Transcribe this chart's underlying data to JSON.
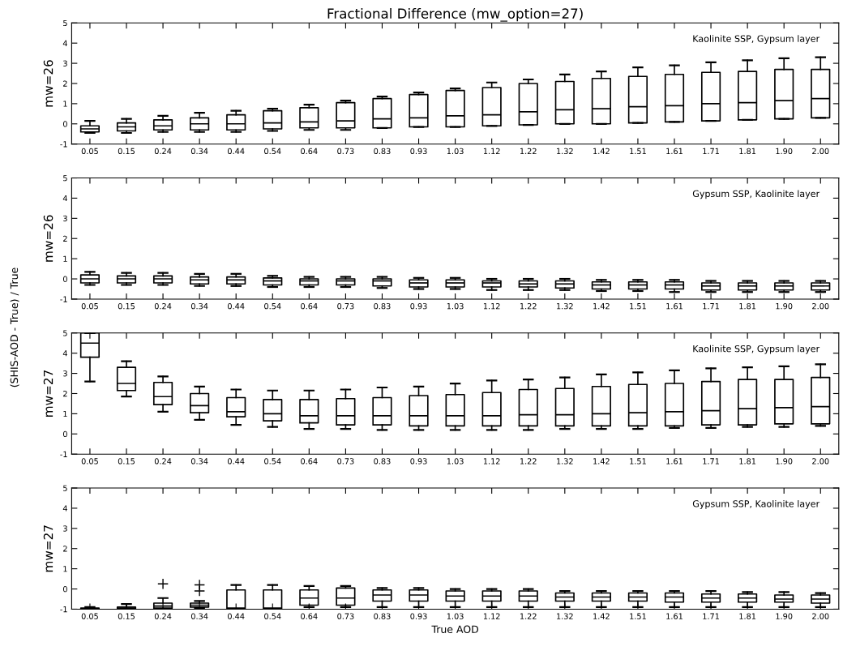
{
  "chart_data": [
    {
      "type": "box",
      "title": "Fractional Difference (mw_option=27)",
      "ylabel": "mw=26",
      "annotations": [
        "Kaolinite SSP, Gypsum layer",
        "(SHIS-AOD - True) / True"
      ],
      "categories": [
        "0.05",
        "0.15",
        "0.24",
        "0.34",
        "0.44",
        "0.54",
        "0.64",
        "0.73",
        "0.83",
        "0.93",
        "1.03",
        "1.12",
        "1.22",
        "1.32",
        "1.42",
        "1.51",
        "1.61",
        "1.71",
        "1.81",
        "1.90",
        "2.00"
      ],
      "ylim": [
        -1,
        5
      ],
      "yticks": [
        -1,
        0,
        1,
        2,
        3,
        4,
        5
      ],
      "color": "#000000",
      "boxes": [
        {
          "low": -0.45,
          "q1": -0.4,
          "median": -0.25,
          "q3": -0.1,
          "high": 0.15
        },
        {
          "low": -0.45,
          "q1": -0.35,
          "median": -0.15,
          "q3": 0.05,
          "high": 0.25
        },
        {
          "low": -0.4,
          "q1": -0.3,
          "median": -0.1,
          "q3": 0.2,
          "high": 0.4
        },
        {
          "low": -0.4,
          "q1": -0.3,
          "median": 0.0,
          "q3": 0.3,
          "high": 0.55
        },
        {
          "low": -0.4,
          "q1": -0.3,
          "median": 0.0,
          "q3": 0.45,
          "high": 0.65
        },
        {
          "low": -0.35,
          "q1": -0.25,
          "median": 0.05,
          "q3": 0.65,
          "high": 0.75
        },
        {
          "low": -0.3,
          "q1": -0.2,
          "median": 0.1,
          "q3": 0.8,
          "high": 0.95
        },
        {
          "low": -0.3,
          "q1": -0.2,
          "median": 0.15,
          "q3": 1.05,
          "high": 1.15
        },
        {
          "low": -0.2,
          "q1": -0.2,
          "median": 0.25,
          "q3": 1.25,
          "high": 1.35
        },
        {
          "low": -0.15,
          "q1": -0.15,
          "median": 0.3,
          "q3": 1.45,
          "high": 1.55
        },
        {
          "low": -0.15,
          "q1": -0.15,
          "median": 0.4,
          "q3": 1.65,
          "high": 1.75
        },
        {
          "low": -0.1,
          "q1": -0.1,
          "median": 0.45,
          "q3": 1.8,
          "high": 2.05
        },
        {
          "low": -0.05,
          "q1": -0.05,
          "median": 0.6,
          "q3": 2.0,
          "high": 2.2
        },
        {
          "low": 0.0,
          "q1": 0.0,
          "median": 0.7,
          "q3": 2.1,
          "high": 2.45
        },
        {
          "low": 0.0,
          "q1": 0.0,
          "median": 0.75,
          "q3": 2.25,
          "high": 2.6
        },
        {
          "low": 0.05,
          "q1": 0.05,
          "median": 0.85,
          "q3": 2.35,
          "high": 2.8
        },
        {
          "low": 0.1,
          "q1": 0.1,
          "median": 0.9,
          "q3": 2.45,
          "high": 2.9
        },
        {
          "low": 0.15,
          "q1": 0.15,
          "median": 1.0,
          "q3": 2.55,
          "high": 3.05
        },
        {
          "low": 0.2,
          "q1": 0.2,
          "median": 1.05,
          "q3": 2.6,
          "high": 3.15
        },
        {
          "low": 0.25,
          "q1": 0.25,
          "median": 1.15,
          "q3": 2.7,
          "high": 3.25
        },
        {
          "low": 0.3,
          "q1": 0.3,
          "median": 1.25,
          "q3": 2.7,
          "high": 3.3
        }
      ]
    },
    {
      "type": "box",
      "ylabel": "mw=26",
      "annotations": [
        "Gypsum SSP, Kaolinite layer"
      ],
      "categories": [
        "0.05",
        "0.15",
        "0.24",
        "0.34",
        "0.44",
        "0.54",
        "0.64",
        "0.73",
        "0.83",
        "0.93",
        "1.03",
        "1.12",
        "1.22",
        "1.32",
        "1.42",
        "1.51",
        "1.61",
        "1.71",
        "1.81",
        "1.90",
        "2.00"
      ],
      "ylim": [
        -1,
        5
      ],
      "yticks": [
        -1,
        0,
        1,
        2,
        3,
        4,
        5
      ],
      "color": "#000000",
      "boxes": [
        {
          "low": -0.3,
          "q1": -0.2,
          "median": 0.0,
          "q3": 0.2,
          "high": 0.35
        },
        {
          "low": -0.3,
          "q1": -0.2,
          "median": 0.0,
          "q3": 0.15,
          "high": 0.3
        },
        {
          "low": -0.3,
          "q1": -0.2,
          "median": 0.0,
          "q3": 0.15,
          "high": 0.3
        },
        {
          "low": -0.35,
          "q1": -0.25,
          "median": -0.05,
          "q3": 0.1,
          "high": 0.25
        },
        {
          "low": -0.35,
          "q1": -0.25,
          "median": -0.05,
          "q3": 0.1,
          "high": 0.25
        },
        {
          "low": -0.4,
          "q1": -0.3,
          "median": -0.1,
          "q3": 0.05,
          "high": 0.15
        },
        {
          "low": -0.4,
          "q1": -0.3,
          "median": -0.1,
          "q3": 0.0,
          "high": 0.1
        },
        {
          "low": -0.4,
          "q1": -0.3,
          "median": -0.1,
          "q3": 0.0,
          "high": 0.1
        },
        {
          "low": -0.45,
          "q1": -0.35,
          "median": -0.1,
          "q3": 0.0,
          "high": 0.1
        },
        {
          "low": -0.5,
          "q1": -0.4,
          "median": -0.2,
          "q3": -0.05,
          "high": 0.05
        },
        {
          "low": -0.5,
          "q1": -0.4,
          "median": -0.2,
          "q3": -0.05,
          "high": 0.05
        },
        {
          "low": -0.55,
          "q1": -0.4,
          "median": -0.2,
          "q3": -0.1,
          "high": 0.0
        },
        {
          "low": -0.55,
          "q1": -0.4,
          "median": -0.25,
          "q3": -0.1,
          "high": 0.0
        },
        {
          "low": -0.55,
          "q1": -0.45,
          "median": -0.25,
          "q3": -0.1,
          "high": 0.0
        },
        {
          "low": -0.6,
          "q1": -0.5,
          "median": -0.3,
          "q3": -0.15,
          "high": -0.05
        },
        {
          "low": -0.6,
          "q1": -0.5,
          "median": -0.3,
          "q3": -0.15,
          "high": -0.05
        },
        {
          "low": -0.65,
          "q1": -0.5,
          "median": -0.3,
          "q3": -0.15,
          "high": -0.05
        },
        {
          "low": -0.65,
          "q1": -0.55,
          "median": -0.35,
          "q3": -0.2,
          "high": -0.1
        },
        {
          "low": -0.65,
          "q1": -0.55,
          "median": -0.35,
          "q3": -0.2,
          "high": -0.1
        },
        {
          "low": -0.65,
          "q1": -0.55,
          "median": -0.35,
          "q3": -0.2,
          "high": -0.1
        },
        {
          "low": -0.65,
          "q1": -0.55,
          "median": -0.35,
          "q3": -0.2,
          "high": -0.1
        }
      ]
    },
    {
      "type": "box",
      "ylabel": "mw=27",
      "annotations": [
        "Kaolinite SSP, Gypsum layer"
      ],
      "categories": [
        "0.05",
        "0.15",
        "0.24",
        "0.34",
        "0.44",
        "0.54",
        "0.64",
        "0.73",
        "0.83",
        "0.93",
        "1.03",
        "1.12",
        "1.22",
        "1.32",
        "1.42",
        "1.51",
        "1.61",
        "1.71",
        "1.81",
        "1.90",
        "2.00"
      ],
      "ylim": [
        -1,
        5
      ],
      "yticks": [
        -1,
        0,
        1,
        2,
        3,
        4,
        5
      ],
      "color": "#000000",
      "boxes": [
        {
          "low": 2.6,
          "q1": 3.8,
          "median": 4.5,
          "q3": 5.0,
          "high": 5.0
        },
        {
          "low": 1.85,
          "q1": 2.15,
          "median": 2.5,
          "q3": 3.3,
          "high": 3.6
        },
        {
          "low": 1.1,
          "q1": 1.45,
          "median": 1.85,
          "q3": 2.55,
          "high": 2.85
        },
        {
          "low": 0.7,
          "q1": 1.05,
          "median": 1.4,
          "q3": 2.0,
          "high": 2.35
        },
        {
          "low": 0.45,
          "q1": 0.85,
          "median": 1.1,
          "q3": 1.8,
          "high": 2.2
        },
        {
          "low": 0.35,
          "q1": 0.65,
          "median": 1.0,
          "q3": 1.7,
          "high": 2.15
        },
        {
          "low": 0.25,
          "q1": 0.55,
          "median": 0.9,
          "q3": 1.7,
          "high": 2.15
        },
        {
          "low": 0.25,
          "q1": 0.45,
          "median": 0.9,
          "q3": 1.75,
          "high": 2.2
        },
        {
          "low": 0.2,
          "q1": 0.45,
          "median": 0.9,
          "q3": 1.8,
          "high": 2.3
        },
        {
          "low": 0.2,
          "q1": 0.4,
          "median": 0.9,
          "q3": 1.9,
          "high": 2.35
        },
        {
          "low": 0.2,
          "q1": 0.4,
          "median": 0.9,
          "q3": 1.95,
          "high": 2.5
        },
        {
          "low": 0.2,
          "q1": 0.4,
          "median": 0.9,
          "q3": 2.05,
          "high": 2.65
        },
        {
          "low": 0.2,
          "q1": 0.4,
          "median": 0.95,
          "q3": 2.2,
          "high": 2.7
        },
        {
          "low": 0.25,
          "q1": 0.4,
          "median": 0.95,
          "q3": 2.25,
          "high": 2.8
        },
        {
          "low": 0.25,
          "q1": 0.4,
          "median": 1.0,
          "q3": 2.35,
          "high": 2.95
        },
        {
          "low": 0.25,
          "q1": 0.4,
          "median": 1.05,
          "q3": 2.45,
          "high": 3.05
        },
        {
          "low": 0.3,
          "q1": 0.4,
          "median": 1.1,
          "q3": 2.5,
          "high": 3.15
        },
        {
          "low": 0.3,
          "q1": 0.45,
          "median": 1.15,
          "q3": 2.6,
          "high": 3.25
        },
        {
          "low": 0.35,
          "q1": 0.45,
          "median": 1.25,
          "q3": 2.7,
          "high": 3.3
        },
        {
          "low": 0.35,
          "q1": 0.5,
          "median": 1.3,
          "q3": 2.7,
          "high": 3.35
        },
        {
          "low": 0.4,
          "q1": 0.5,
          "median": 1.35,
          "q3": 2.8,
          "high": 3.45
        }
      ]
    },
    {
      "type": "box",
      "ylabel": "mw=27",
      "xlabel": "True AOD",
      "annotations": [
        "Gypsum SSP, Kaolinite layer"
      ],
      "categories": [
        "0.05",
        "0.15",
        "0.24",
        "0.34",
        "0.44",
        "0.54",
        "0.64",
        "0.73",
        "0.83",
        "0.93",
        "1.03",
        "1.12",
        "1.22",
        "1.32",
        "1.42",
        "1.51",
        "1.61",
        "1.71",
        "1.81",
        "1.90",
        "2.00"
      ],
      "ylim": [
        -1,
        5
      ],
      "yticks": [
        -1,
        0,
        1,
        2,
        3,
        4,
        5
      ],
      "color": "#000000",
      "marker": "cross",
      "boxes": [
        {
          "low": -1,
          "q1": -1,
          "median": -0.98,
          "q3": -0.95,
          "high": -0.9
        },
        {
          "low": -1,
          "q1": -1,
          "median": -0.95,
          "q3": -0.9,
          "high": -0.75
        },
        {
          "low": -1,
          "q1": -0.95,
          "median": -0.85,
          "q3": -0.7,
          "high": -0.45,
          "outliers": [
            0.25
          ]
        },
        {
          "low": -0.95,
          "q1": -0.9,
          "median": -0.8,
          "q3": -0.7,
          "high": -0.6,
          "outliers": [
            -0.1,
            0.2
          ]
        },
        {
          "low": -1,
          "q1": -1,
          "median": -0.95,
          "q3": -0.05,
          "high": 0.2
        },
        {
          "low": -1,
          "q1": -1,
          "median": -0.95,
          "q3": -0.05,
          "high": 0.2
        },
        {
          "low": -0.9,
          "q1": -0.8,
          "median": -0.45,
          "q3": -0.05,
          "high": 0.15
        },
        {
          "low": -0.9,
          "q1": -0.8,
          "median": -0.45,
          "q3": 0.05,
          "high": 0.15
        },
        {
          "low": -0.9,
          "q1": -0.6,
          "median": -0.3,
          "q3": -0.05,
          "high": 0.05
        },
        {
          "low": -0.9,
          "q1": -0.6,
          "median": -0.3,
          "q3": -0.05,
          "high": 0.05
        },
        {
          "low": -0.9,
          "q1": -0.6,
          "median": -0.35,
          "q3": -0.1,
          "high": 0.0
        },
        {
          "low": -0.9,
          "q1": -0.6,
          "median": -0.35,
          "q3": -0.1,
          "high": 0.0
        },
        {
          "low": -0.9,
          "q1": -0.6,
          "median": -0.35,
          "q3": -0.1,
          "high": 0.0
        },
        {
          "low": -0.9,
          "q1": -0.6,
          "median": -0.4,
          "q3": -0.2,
          "high": -0.1
        },
        {
          "low": -0.9,
          "q1": -0.6,
          "median": -0.4,
          "q3": -0.2,
          "high": -0.1
        },
        {
          "low": -0.9,
          "q1": -0.6,
          "median": -0.4,
          "q3": -0.2,
          "high": -0.1
        },
        {
          "low": -0.9,
          "q1": -0.65,
          "median": -0.4,
          "q3": -0.2,
          "high": -0.1
        },
        {
          "low": -0.9,
          "q1": -0.65,
          "median": -0.45,
          "q3": -0.25,
          "high": -0.1
        },
        {
          "low": -0.9,
          "q1": -0.65,
          "median": -0.45,
          "q3": -0.25,
          "high": -0.15
        },
        {
          "low": -0.9,
          "q1": -0.65,
          "median": -0.5,
          "q3": -0.3,
          "high": -0.15
        },
        {
          "low": -0.9,
          "q1": -0.7,
          "median": -0.5,
          "q3": -0.3,
          "high": -0.2
        }
      ]
    }
  ]
}
